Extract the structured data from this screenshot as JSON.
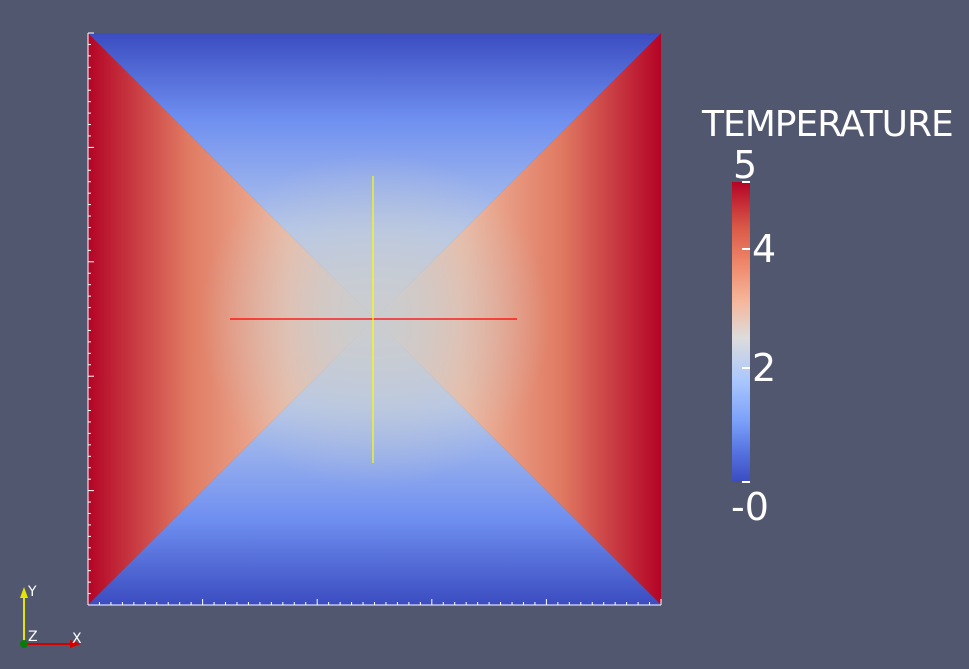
{
  "legend": {
    "title": "TEMPERATURE",
    "ticks": [
      "5",
      "4",
      "2",
      "-0"
    ]
  },
  "orientation_axes": {
    "y_label": "Y",
    "z_label": "Z",
    "x_label": "X"
  },
  "colors": {
    "background": "#525770",
    "hot": "#b40426",
    "mid": "#dddcdc",
    "cold": "#3b4cc0",
    "cursor_horizontal": "#ff0000",
    "cursor_vertical": "#ffff00"
  }
}
